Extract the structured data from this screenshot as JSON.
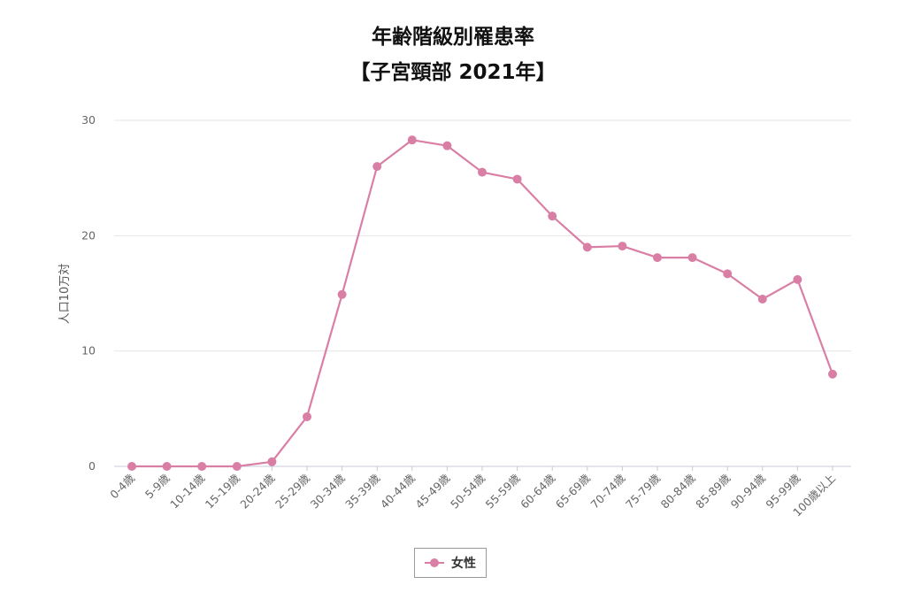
{
  "chart_data": {
    "type": "line",
    "title": "年齢階級別罹患率",
    "subtitle": "【子宮頸部 2021年】",
    "ylabel": "人口10万対",
    "xlabel": "",
    "ylim": [
      0,
      30
    ],
    "yticks": [
      0,
      10,
      20,
      30
    ],
    "grid": true,
    "legend_placement": "bottom-center",
    "categories": [
      "0-4歳",
      "5-9歳",
      "10-14歳",
      "15-19歳",
      "20-24歳",
      "25-29歳",
      "30-34歳",
      "35-39歳",
      "40-44歳",
      "45-49歳",
      "50-54歳",
      "55-59歳",
      "60-64歳",
      "65-69歳",
      "70-74歳",
      "75-79歳",
      "80-84歳",
      "85-89歳",
      "90-94歳",
      "95-99歳",
      "100歳以上"
    ],
    "series": [
      {
        "name": "女性",
        "color": "#d97fa5",
        "values": [
          0.0,
          0.0,
          0.0,
          0.0,
          0.4,
          4.3,
          14.9,
          26.0,
          28.3,
          27.8,
          25.5,
          24.9,
          21.7,
          19.0,
          19.1,
          18.1,
          18.1,
          16.7,
          14.5,
          16.2,
          8.0
        ]
      }
    ]
  }
}
